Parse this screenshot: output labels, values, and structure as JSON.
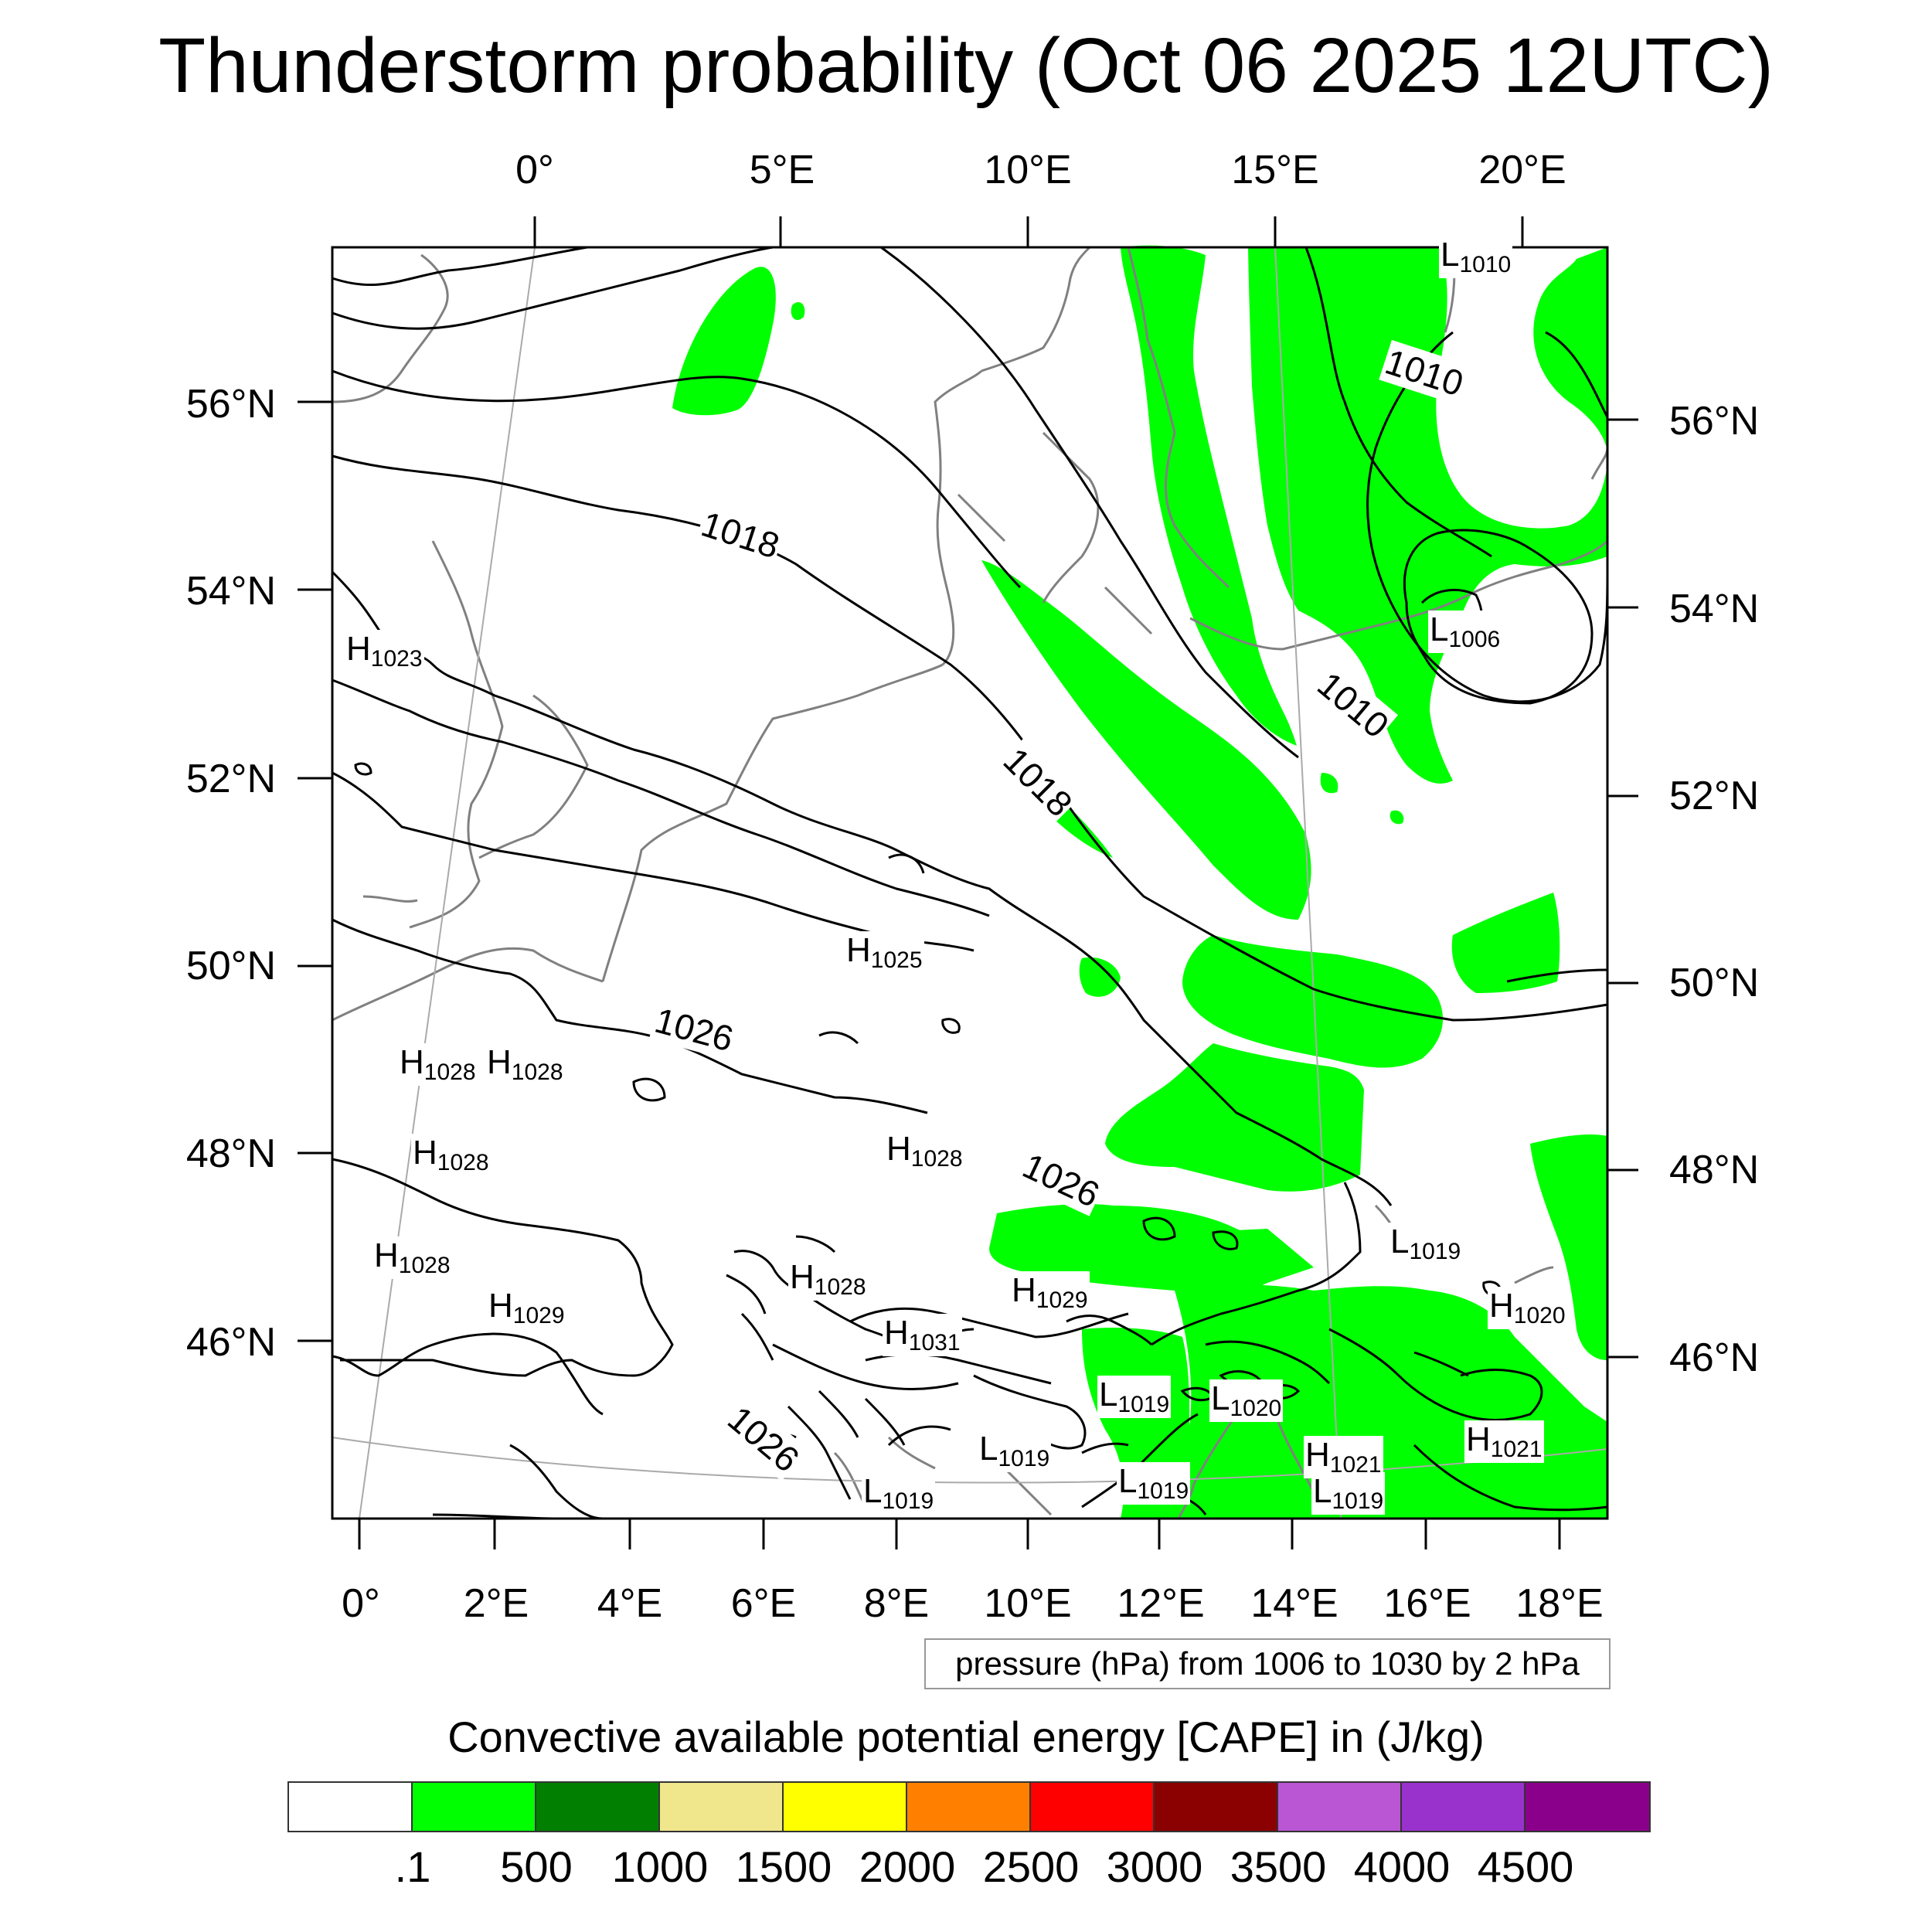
{
  "title": "Thunderstorm probability (Oct 06 2025 12UTC)",
  "lon_top": [
    "0°",
    "5°E",
    "10°E",
    "15°E",
    "20°E"
  ],
  "lon_bottom": [
    "0°",
    "2°E",
    "4°E",
    "6°E",
    "8°E",
    "10°E",
    "12°E",
    "14°E",
    "16°E",
    "18°E"
  ],
  "lat_left": [
    "56°N",
    "54°N",
    "52°N",
    "50°N",
    "48°N",
    "46°N"
  ],
  "lat_right": [
    "56°N",
    "54°N",
    "52°N",
    "50°N",
    "48°N",
    "46°N"
  ],
  "pressure_note": "pressure (hPa) from 1006 to 1030 by 2 hPa",
  "contour_labels": [
    "1010",
    "1018",
    "1010",
    "1018",
    "1026",
    "1026",
    "1026"
  ],
  "pressure_centers": [
    {
      "type": "L",
      "value": "1010"
    },
    {
      "type": "L",
      "value": "1006"
    },
    {
      "type": "H",
      "value": "1023"
    },
    {
      "type": "H",
      "value": "1025"
    },
    {
      "type": "H",
      "value": "1028"
    },
    {
      "type": "H",
      "value": "1028"
    },
    {
      "type": "H",
      "value": "1028"
    },
    {
      "type": "H",
      "value": "1028"
    },
    {
      "type": "H",
      "value": "1028"
    },
    {
      "type": "H",
      "value": "1029"
    },
    {
      "type": "H",
      "value": "1028"
    },
    {
      "type": "H",
      "value": "1029"
    },
    {
      "type": "H",
      "value": "1031"
    },
    {
      "type": "L",
      "value": "1019"
    },
    {
      "type": "H",
      "value": "1020"
    },
    {
      "type": "L",
      "value": "1019"
    },
    {
      "type": "L",
      "value": "1020"
    },
    {
      "type": "H",
      "value": "1021"
    },
    {
      "type": "H",
      "value": "1021"
    },
    {
      "type": "L",
      "value": "1019"
    },
    {
      "type": "L",
      "value": "1019"
    },
    {
      "type": "L",
      "value": "1019"
    },
    {
      "type": "L",
      "value": "1019"
    }
  ],
  "colorbar": {
    "title": "Convective available potential energy [CAPE] in (J/kg)",
    "colors": [
      "#ffffff",
      "#00ff00",
      "#007f00",
      "#f0e68c",
      "#ffff00",
      "#ff8000",
      "#ff0000",
      "#8b0000",
      "#ba55d3",
      "#9932cc",
      "#8b008b"
    ],
    "labels": [
      ".1",
      "500",
      "1000",
      "1500",
      "2000",
      "2500",
      "3000",
      "3500",
      "4000",
      "4500"
    ]
  }
}
